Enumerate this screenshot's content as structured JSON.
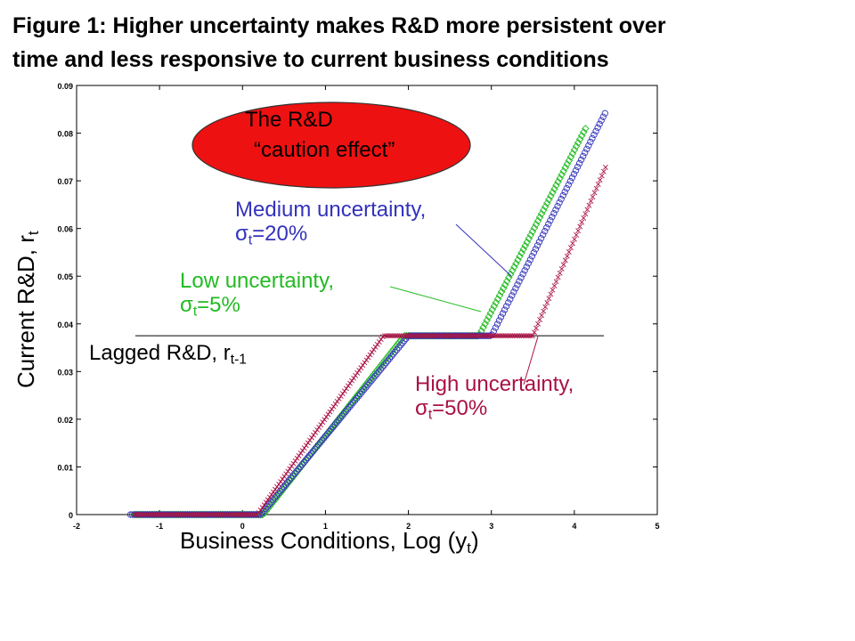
{
  "title": {
    "line1": "Figure 1: Higher uncertainty makes R&D more persistent over",
    "line2": "time and less responsive to current business conditions"
  },
  "chart_data": {
    "type": "scatter",
    "xlim": [
      -2,
      5
    ],
    "ylim": [
      0,
      0.09
    ],
    "x_ticks": [
      -2,
      -1,
      0,
      1,
      2,
      3,
      4,
      5
    ],
    "y_ticks": [
      0,
      0.01,
      0.02,
      0.03,
      0.04,
      0.05,
      0.06,
      0.07,
      0.08,
      0.09
    ],
    "x_tick_labels": [
      "-2",
      "-1",
      "0",
      "1",
      "2",
      "3",
      "4",
      "5"
    ],
    "y_tick_labels": [
      "0",
      "0.01",
      "0.02",
      "0.03",
      "0.04",
      "0.05",
      "0.06",
      "0.07",
      "0.08",
      "0.09"
    ],
    "xlabel_main": "Business Conditions, Log (y",
    "xlabel_sub": "t",
    "xlabel_end": ")",
    "ylabel_main": "Current R&D, r",
    "ylabel_sub": "t",
    "lagged_level": 0.0375,
    "lagged_label_main": "Lagged R&D, r",
    "lagged_label_sub": "t-1",
    "caution": {
      "line1": "The R&D",
      "line2": "“caution effect”",
      "color": "#ee1111"
    },
    "series": [
      {
        "key": "low",
        "label_line1": "Low uncertainty,",
        "label_sigma": "σ",
        "label_sub": "t",
        "label_value": "=5%",
        "color": "#22bb22",
        "marker": "square",
        "points": [
          [
            -1.3,
            0
          ],
          [
            0.25,
            0
          ],
          [
            1.95,
            0.0375
          ],
          [
            2.85,
            0.0375
          ],
          [
            4.15,
            0.0815
          ]
        ]
      },
      {
        "key": "medium",
        "label_line1": "Medium uncertainty,",
        "label_sigma": "σ",
        "label_sub": "t",
        "label_value": "=20%",
        "color": "#3333bb",
        "marker": "circle",
        "points": [
          [
            -1.35,
            0
          ],
          [
            0.22,
            0
          ],
          [
            2.0,
            0.0375
          ],
          [
            3.0,
            0.0375
          ],
          [
            4.38,
            0.0845
          ]
        ]
      },
      {
        "key": "high",
        "label_line1": "High uncertainty,",
        "label_sigma": "σ",
        "label_sub": "t",
        "label_value": "=50%",
        "color": "#aa1144",
        "marker": "x",
        "points": [
          [
            -1.3,
            0
          ],
          [
            0.18,
            0
          ],
          [
            1.7,
            0.0375
          ],
          [
            3.5,
            0.0375
          ],
          [
            4.38,
            0.073
          ]
        ]
      }
    ]
  }
}
